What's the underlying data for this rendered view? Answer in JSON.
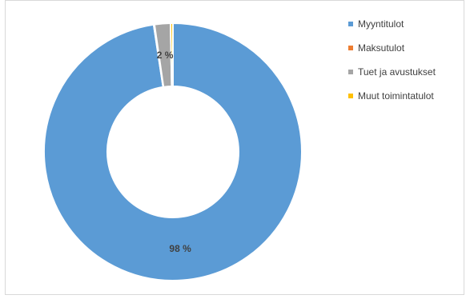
{
  "chart_data": {
    "type": "pie",
    "variant": "doughnut",
    "title": "",
    "series": [
      {
        "name": "Myyntitulot",
        "value": 98,
        "color": "#5b9bd5"
      },
      {
        "name": "Maksutulot",
        "value": 0.1,
        "color": "#ed7d31"
      },
      {
        "name": "Tuet ja avustukset",
        "value": 2,
        "color": "#a5a5a5"
      },
      {
        "name": "Muut toimintatulot",
        "value": 0.3,
        "color": "#ffc000"
      }
    ],
    "data_labels": [
      {
        "series": "Myyntitulot",
        "text": "98 %"
      },
      {
        "series": "Tuet ja avustukset",
        "text": "2 %"
      }
    ],
    "legend_position": "right"
  }
}
